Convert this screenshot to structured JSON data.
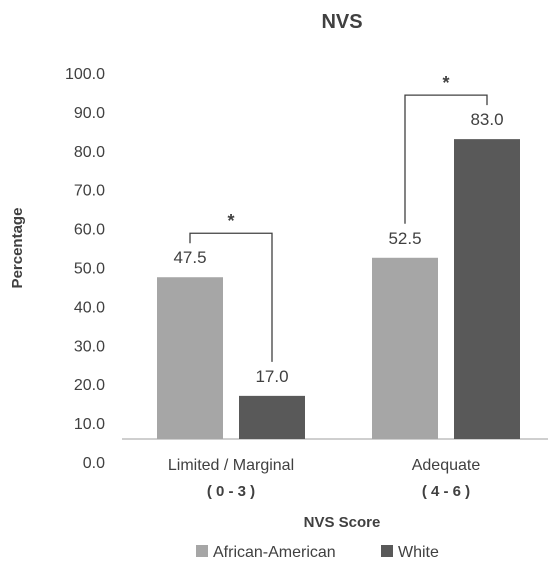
{
  "chart_data": {
    "type": "bar",
    "title": "NVS",
    "xlabel": "NVS Score",
    "ylabel": "Percentage",
    "ylim": [
      0,
      100
    ],
    "yticks": [
      "0.0",
      "10.0",
      "20.0",
      "30.0",
      "40.0",
      "50.0",
      "60.0",
      "70.0",
      "80.0",
      "90.0",
      "100.0"
    ],
    "categories": [
      {
        "label": "Limited / Marginal",
        "range": "( 0 - 3 )"
      },
      {
        "label": "Adequate",
        "range": "( 4 - 6 )"
      }
    ],
    "series": [
      {
        "name": "African-American",
        "color": "#a6a6a6",
        "values": [
          47.5,
          52.5
        ],
        "labels": [
          "47.5",
          "52.5"
        ]
      },
      {
        "name": "White",
        "color": "#595959",
        "values": [
          17.0,
          83.0
        ],
        "labels": [
          "17.0",
          "83.0"
        ]
      }
    ],
    "significance_marker": "*",
    "grid": false,
    "legend_position": "bottom"
  }
}
